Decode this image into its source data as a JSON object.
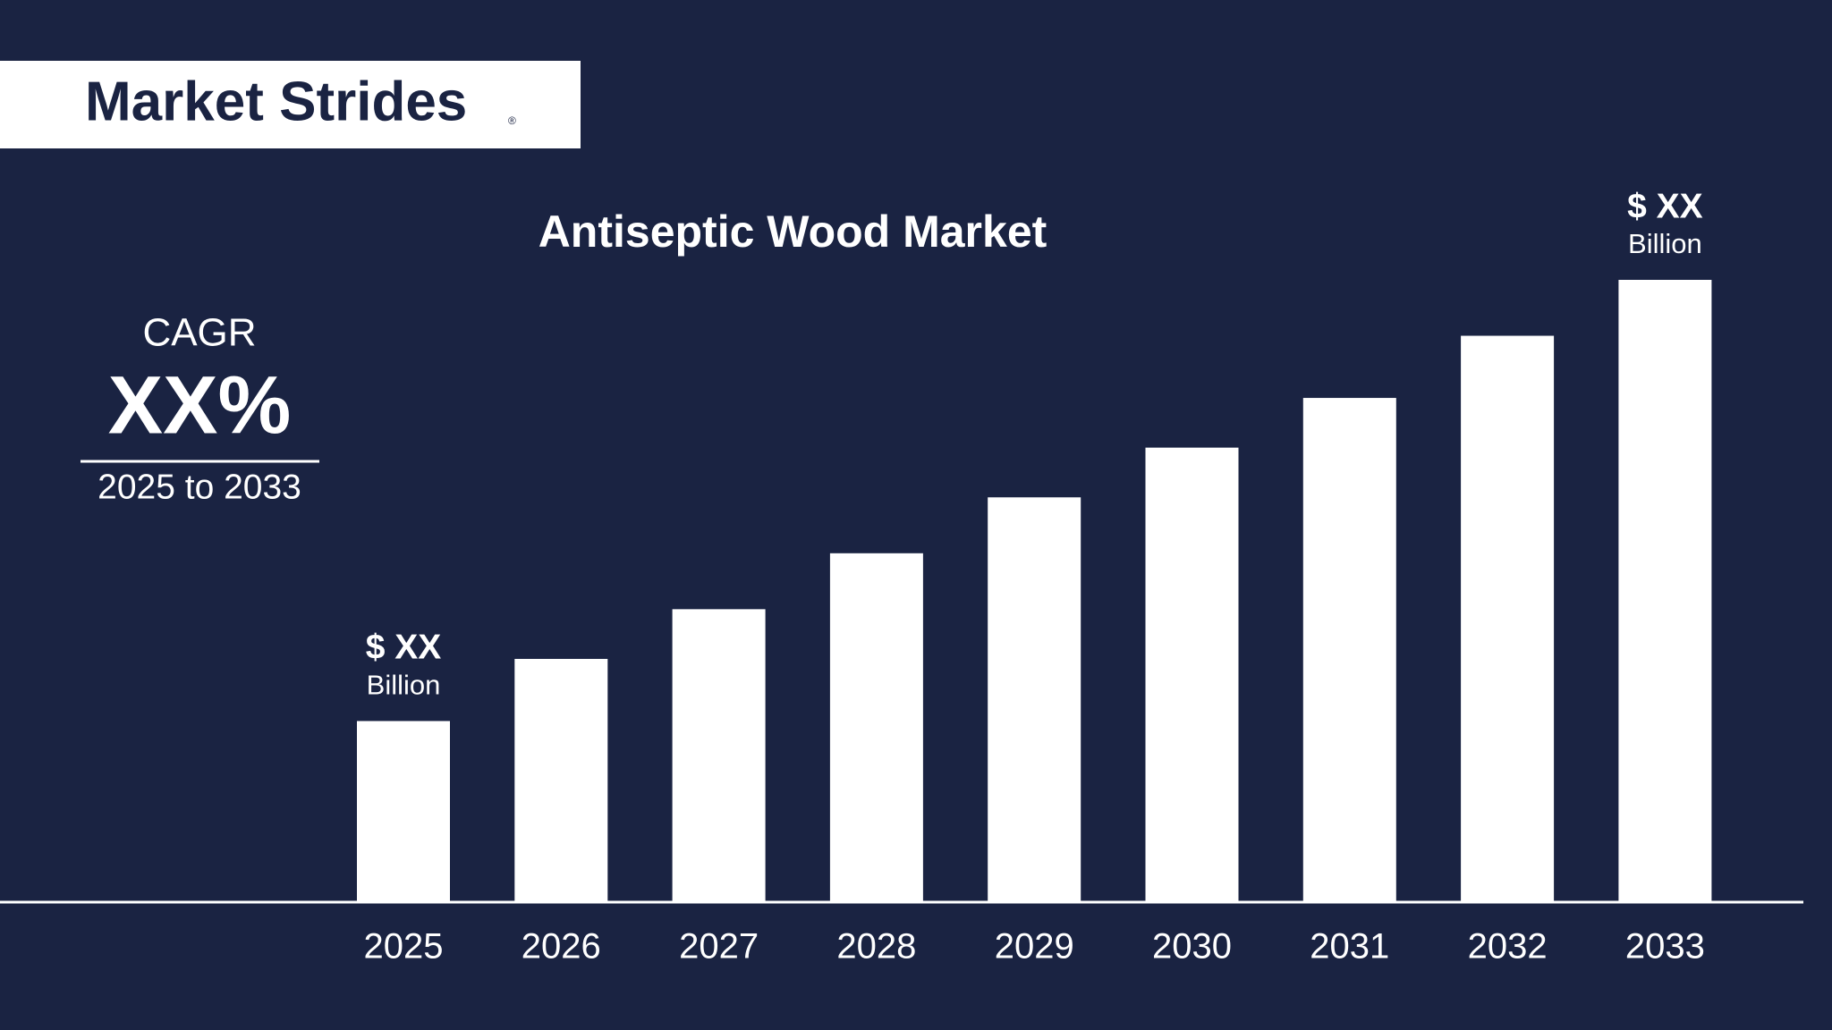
{
  "brand": {
    "name": "Market Strides",
    "mark": "®"
  },
  "chart_data": {
    "type": "bar",
    "title": "Antiseptic Wood Market",
    "categories": [
      "2025",
      "2026",
      "2027",
      "2028",
      "2029",
      "2030",
      "2031",
      "2032",
      "2033"
    ],
    "values": [
      29,
      39,
      47,
      56,
      65,
      73,
      81,
      91,
      100
    ],
    "color": "#ffffff",
    "start_label": {
      "amount": "$ XX",
      "unit": "Billion"
    },
    "end_label": {
      "amount": "$ XX",
      "unit": "Billion"
    }
  },
  "cagr": {
    "label": "CAGR",
    "value": "XX%",
    "period": "2025 to 2033"
  }
}
